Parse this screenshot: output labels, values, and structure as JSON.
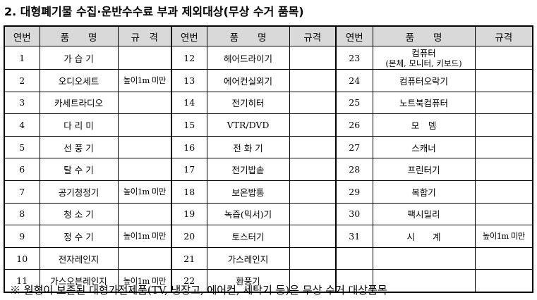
{
  "title": "2. 대형폐기물 수집·운반수수료 부과 제외대상(무상 수거 품목)",
  "table": {
    "headers": [
      "연번",
      "품　　명",
      "규　격",
      "연번",
      "품　　명",
      "규격",
      "연번",
      "품　　명",
      "규격"
    ],
    "rows": [
      {
        "c1": {
          "no": "1",
          "name": "가 습 기",
          "spec": ""
        },
        "c2": {
          "no": "12",
          "name": "헤어드라이기",
          "spec": ""
        },
        "c3": {
          "no": "23",
          "name": "컴퓨터",
          "sub": "(본체, 모니터, 키보드)",
          "spec": ""
        }
      },
      {
        "c1": {
          "no": "2",
          "name": "오디오세트",
          "spec": "높이1m 미만"
        },
        "c2": {
          "no": "13",
          "name": "에어컨실외기",
          "spec": ""
        },
        "c3": {
          "no": "24",
          "name": "컴퓨터오락기",
          "spec": ""
        }
      },
      {
        "c1": {
          "no": "3",
          "name": "카세트라디오",
          "spec": ""
        },
        "c2": {
          "no": "14",
          "name": "전기히터",
          "spec": ""
        },
        "c3": {
          "no": "25",
          "name": "노트북컴퓨터",
          "spec": ""
        }
      },
      {
        "c1": {
          "no": "4",
          "name": "다 리 미",
          "spec": ""
        },
        "c2": {
          "no": "15",
          "name": "VTR/DVD",
          "spec": ""
        },
        "c3": {
          "no": "26",
          "name": "모　뎀",
          "spec": ""
        }
      },
      {
        "c1": {
          "no": "5",
          "name": "선 풍 기",
          "spec": ""
        },
        "c2": {
          "no": "16",
          "name": "전 화 기",
          "spec": ""
        },
        "c3": {
          "no": "27",
          "name": "스캐너",
          "spec": ""
        }
      },
      {
        "c1": {
          "no": "6",
          "name": "탈 수 기",
          "spec": ""
        },
        "c2": {
          "no": "17",
          "name": "전기밥솥",
          "spec": ""
        },
        "c3": {
          "no": "28",
          "name": "프린터기",
          "spec": ""
        }
      },
      {
        "c1": {
          "no": "7",
          "name": "공기청정기",
          "spec": "높이1m 미만"
        },
        "c2": {
          "no": "18",
          "name": "보온밥통",
          "spec": ""
        },
        "c3": {
          "no": "29",
          "name": "복합기",
          "spec": ""
        }
      },
      {
        "c1": {
          "no": "8",
          "name": "청 소 기",
          "spec": ""
        },
        "c2": {
          "no": "19",
          "name": "녹즙(믹서)기",
          "spec": ""
        },
        "c3": {
          "no": "30",
          "name": "팩시밀리",
          "spec": ""
        }
      },
      {
        "c1": {
          "no": "9",
          "name": "정 수 기",
          "spec": "높이1m 미만"
        },
        "c2": {
          "no": "20",
          "name": "토스터기",
          "spec": ""
        },
        "c3": {
          "no": "31",
          "name": "시　　계",
          "spec": "높이1m 미만"
        }
      },
      {
        "c1": {
          "no": "10",
          "name": "전자레인지",
          "spec": ""
        },
        "c2": {
          "no": "21",
          "name": "가스레인지",
          "spec": ""
        },
        "c3": {
          "no": "",
          "name": "",
          "spec": ""
        }
      },
      {
        "c1": {
          "no": "11",
          "name": "가스오븐레인지",
          "spec": "높이1m 미만"
        },
        "c2": {
          "no": "22",
          "name": "환풍기",
          "spec": ""
        },
        "c3": {
          "no": "",
          "name": "",
          "spec": ""
        }
      }
    ]
  },
  "note": "※ 원형이 보존된 대형가전제품(TV, 냉장고, 에어컨, 세탁기 등)은 무상 수거 대상품목"
}
